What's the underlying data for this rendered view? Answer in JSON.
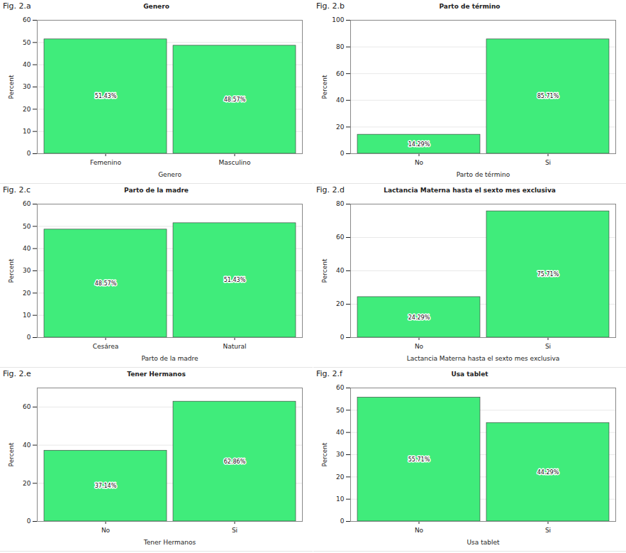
{
  "chart_data": [
    {
      "type": "bar",
      "figure_label": "Fig. 2.a",
      "title": "Genero",
      "x_label": "Genero",
      "y_label": "Percent",
      "categories": [
        "Femenino",
        "Masculino"
      ],
      "values": [
        51.43,
        48.57
      ],
      "value_labels": [
        "51.43%",
        "48.57%"
      ],
      "color": "#40ec7b",
      "ylim": [
        0,
        60
      ],
      "yticks": [
        0,
        10,
        20,
        30,
        40,
        50,
        60
      ],
      "grid": true,
      "data_labels": true
    },
    {
      "type": "bar",
      "figure_label": "Fig. 2.b",
      "title": "Parto de término",
      "x_label": "Parto de término",
      "y_label": "Percent",
      "categories": [
        "No",
        "Si"
      ],
      "values": [
        14.29,
        85.71
      ],
      "value_labels": [
        "14.29%",
        "85.71%"
      ],
      "color": "#40ec7b",
      "ylim": [
        0,
        100
      ],
      "yticks": [
        0,
        20,
        40,
        60,
        80,
        100
      ],
      "grid": true,
      "data_labels": true
    },
    {
      "type": "bar",
      "figure_label": "Fig. 2.c",
      "title": "Parto de la madre",
      "x_label": "Parto de la madre",
      "y_label": "Percent",
      "categories": [
        "Cesárea",
        "Natural"
      ],
      "values": [
        48.57,
        51.43
      ],
      "value_labels": [
        "48.57%",
        "51.43%"
      ],
      "color": "#40ec7b",
      "ylim": [
        0,
        60
      ],
      "yticks": [
        0,
        10,
        20,
        30,
        40,
        50,
        60
      ],
      "grid": true,
      "data_labels": true
    },
    {
      "type": "bar",
      "figure_label": "Fig. 2.d",
      "title": "Lactancia Materna hasta el sexto mes exclusiva",
      "x_label": "Lactancia Materna hasta el sexto mes exclusiva",
      "y_label": "Percent",
      "categories": [
        "No",
        "Si"
      ],
      "values": [
        24.29,
        75.71
      ],
      "value_labels": [
        "24.29%",
        "75.71%"
      ],
      "color": "#40ec7b",
      "ylim": [
        0,
        80
      ],
      "yticks": [
        0,
        20,
        40,
        60,
        80
      ],
      "grid": true,
      "data_labels": true
    },
    {
      "type": "bar",
      "figure_label": "Fig. 2.e",
      "title": "Tener Hermanos",
      "x_label": "Tener Hermanos",
      "y_label": "Percent",
      "categories": [
        "No",
        "Si"
      ],
      "values": [
        37.14,
        62.86
      ],
      "value_labels": [
        "37.14%",
        "62.86%"
      ],
      "color": "#40ec7b",
      "ylim": [
        0,
        70
      ],
      "yticks": [
        0,
        20,
        40,
        60
      ],
      "grid": true,
      "data_labels": true
    },
    {
      "type": "bar",
      "figure_label": "Fig. 2.f",
      "title": "Usa tablet",
      "x_label": "Usa tablet",
      "y_label": "Percent",
      "categories": [
        "No",
        "Si"
      ],
      "values": [
        55.71,
        44.29
      ],
      "value_labels": [
        "55.71%",
        "44.29%"
      ],
      "color": "#40ec7b",
      "ylim": [
        0,
        60
      ],
      "yticks": [
        0,
        10,
        20,
        30,
        40,
        50,
        60
      ],
      "grid": true,
      "data_labels": true
    }
  ]
}
